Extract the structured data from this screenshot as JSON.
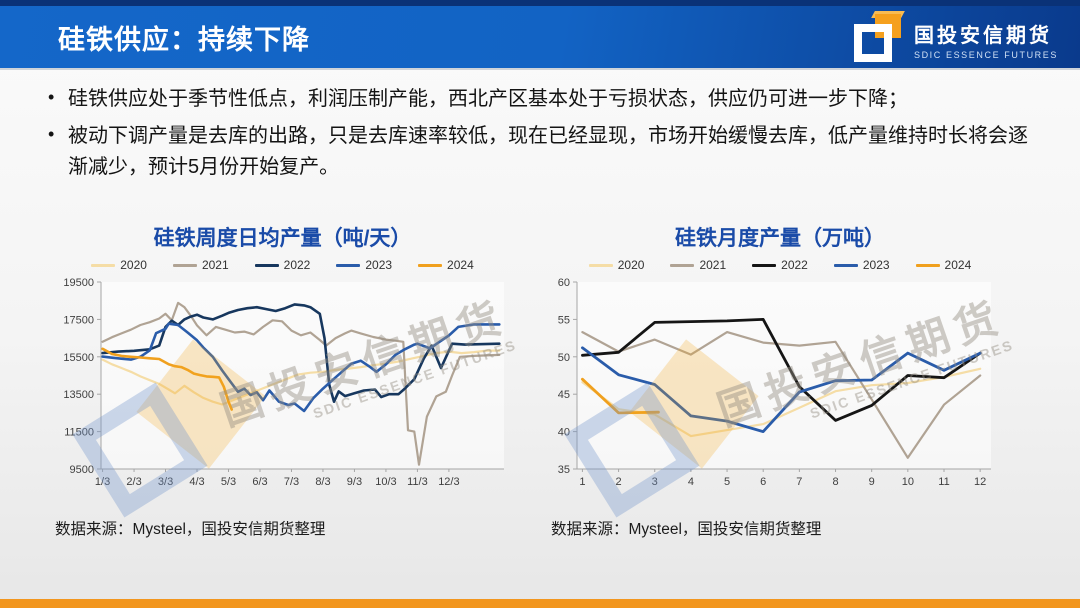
{
  "header": {
    "title": "硅铁供应：持续下降",
    "logo_cn": "国投安信期货",
    "logo_en": "SDIC ESSENCE FUTURES"
  },
  "bullets": [
    "硅铁供应处于季节性低点，利润压制产能，西北产区基本处于亏损状态，供应仍可进一步下降；",
    "被动下调产量是去库的出路，只是去库速率较低，现在已经显现，市场开始缓慢去库，低产量维持时长将会逐渐减少，预计5月份开始复产。"
  ],
  "watermark": {
    "cn": "国投安信期货",
    "en": "SDIC ESSENCE FUTURES"
  },
  "sources": [
    "数据来源：Mysteel，国投安信期货整理",
    "数据来源：Mysteel，国投安信期货整理"
  ],
  "chart_data": [
    {
      "type": "line",
      "title": "硅铁周度日均产量（吨/天）",
      "xlabel": "",
      "ylabel": "",
      "xlim": [
        0.95,
        13.75
      ],
      "ylim": [
        9500,
        19500
      ],
      "y_ticks": [
        9500,
        11500,
        13500,
        15500,
        17500,
        19500
      ],
      "x_ticks": [
        {
          "v": 1,
          "label": "1/3"
        },
        {
          "v": 2,
          "label": "2/3"
        },
        {
          "v": 3,
          "label": "3/3"
        },
        {
          "v": 4,
          "label": "4/3"
        },
        {
          "v": 5,
          "label": "5/3"
        },
        {
          "v": 6,
          "label": "6/3"
        },
        {
          "v": 7,
          "label": "7/3"
        },
        {
          "v": 8,
          "label": "8/3"
        },
        {
          "v": 9,
          "label": "9/3"
        },
        {
          "v": 10,
          "label": "10/3"
        },
        {
          "v": 11,
          "label": "11/3"
        },
        {
          "v": 12,
          "label": "12/3"
        }
      ],
      "grid": false,
      "legend_position": "top",
      "series": [
        {
          "name": "2020",
          "color": "#f5dda6",
          "w": 2.2,
          "x": [
            1,
            1.3,
            1.6,
            1.9,
            2.2,
            2.5,
            2.8,
            3.1,
            3.3,
            3.6,
            3.9,
            4.2,
            4.5,
            4.8,
            5.1,
            5.4,
            5.7,
            6.0,
            6.3,
            6.6,
            6.9,
            7.2,
            7.6,
            8.0,
            8.4,
            8.8,
            9.2,
            9.6,
            10.0,
            10.4,
            10.8,
            11.2,
            11.6,
            12.0,
            12.4,
            12.8,
            13.2,
            13.6
          ],
          "y": [
            15350,
            15100,
            14900,
            14700,
            14450,
            14250,
            14050,
            13750,
            13550,
            13950,
            13600,
            13300,
            13100,
            12950,
            13150,
            13350,
            13550,
            13750,
            13950,
            14150,
            14350,
            14550,
            14650,
            14700,
            14800,
            14870,
            14950,
            15050,
            15130,
            15250,
            15400,
            15550,
            15700,
            15780,
            15700,
            15750,
            15830,
            15830
          ]
        },
        {
          "name": "2021",
          "color": "#b0a394",
          "w": 2.2,
          "x": [
            1,
            1.3,
            1.6,
            1.9,
            2.2,
            2.5,
            2.8,
            3.0,
            3.2,
            3.4,
            3.6,
            3.8,
            4.0,
            4.3,
            4.6,
            4.9,
            5.2,
            5.5,
            5.8,
            6.1,
            6.4,
            6.7,
            7.0,
            7.3,
            7.6,
            7.9,
            8.1,
            8.4,
            8.7,
            8.9,
            9.2,
            9.6,
            10.0,
            10.3,
            10.55,
            10.7,
            10.9,
            11.05,
            11.3,
            11.6,
            11.9,
            12.1,
            12.35,
            12.8,
            13.6
          ],
          "y": [
            16300,
            16550,
            16750,
            16950,
            17200,
            17350,
            17550,
            17800,
            17450,
            18380,
            18150,
            17700,
            17180,
            16650,
            17100,
            16950,
            16800,
            16850,
            16700,
            17100,
            17450,
            17400,
            16900,
            16650,
            16800,
            16400,
            16100,
            16500,
            16750,
            16900,
            16750,
            16560,
            16420,
            16360,
            16300,
            11570,
            11500,
            9730,
            12300,
            13380,
            13630,
            14500,
            15500,
            15550,
            15600
          ]
        },
        {
          "name": "2022",
          "color": "#17375e",
          "w": 2.6,
          "x": [
            1,
            1.5,
            2.0,
            2.5,
            2.8,
            3.0,
            3.2,
            3.4,
            3.6,
            3.8,
            4.0,
            4.2,
            4.5,
            4.8,
            5.0,
            5.3,
            5.6,
            5.9,
            6.2,
            6.5,
            6.8,
            7.1,
            7.4,
            7.6,
            7.9,
            8.05,
            8.2,
            8.35,
            8.5,
            8.7,
            9.0,
            9.3,
            9.65,
            9.85,
            10.1,
            10.4,
            10.6,
            10.9,
            11.2,
            11.45,
            11.75,
            12.1,
            12.5,
            13.6
          ],
          "y": [
            15700,
            15780,
            15820,
            15900,
            16100,
            17100,
            17430,
            17200,
            17500,
            17650,
            17750,
            17600,
            17500,
            17700,
            17850,
            18000,
            18100,
            18150,
            18050,
            17950,
            18100,
            18300,
            18250,
            18150,
            17800,
            16500,
            14000,
            13100,
            13650,
            13400,
            13550,
            13700,
            13750,
            13350,
            13500,
            13500,
            13800,
            14300,
            15400,
            16100,
            14900,
            16200,
            16150,
            16200
          ]
        },
        {
          "name": "2023",
          "color": "#2a5caa",
          "w": 2.6,
          "x": [
            1,
            1.3,
            1.6,
            1.9,
            2.2,
            2.5,
            2.7,
            3.0,
            3.1,
            3.4,
            3.7,
            4.0,
            4.2,
            4.5,
            4.8,
            5.1,
            5.3,
            5.5,
            5.7,
            5.9,
            6.1,
            6.3,
            6.6,
            6.9,
            7.1,
            7.4,
            7.7,
            8.0,
            8.3,
            8.6,
            8.9,
            9.2,
            9.5,
            9.7,
            10.0,
            10.3,
            10.6,
            10.9,
            11.0,
            11.4,
            11.7,
            12.0,
            12.3,
            12.8,
            13.6
          ],
          "y": [
            15510,
            15450,
            15400,
            15350,
            15500,
            15850,
            16760,
            17000,
            17270,
            17200,
            16800,
            16380,
            16000,
            15500,
            14770,
            14080,
            13630,
            13800,
            13450,
            13600,
            13180,
            13700,
            13100,
            12920,
            13000,
            12600,
            13300,
            13800,
            14250,
            14700,
            15130,
            15290,
            14950,
            14700,
            15100,
            15600,
            15900,
            16150,
            16200,
            15950,
            16300,
            16640,
            17100,
            17230,
            17230
          ]
        },
        {
          "name": "2024",
          "color": "#f0a01e",
          "w": 2.6,
          "x": [
            1,
            1.3,
            1.6,
            1.9,
            2.2,
            2.5,
            2.8,
            3.1,
            3.3,
            3.5,
            3.7,
            3.9,
            4.1,
            4.3,
            4.5,
            4.7,
            4.85,
            5.0,
            5.1
          ],
          "y": [
            15930,
            15650,
            15550,
            15500,
            15460,
            15420,
            15380,
            15100,
            15000,
            14950,
            14800,
            14600,
            14520,
            14450,
            14430,
            14400,
            13900,
            13100,
            12680
          ]
        }
      ]
    },
    {
      "type": "line",
      "title": "硅铁月度产量（万吨）",
      "xlabel": "",
      "ylabel": "",
      "xlim": [
        0.85,
        12.3
      ],
      "ylim": [
        35,
        60
      ],
      "y_ticks": [
        35,
        40,
        45,
        50,
        55,
        60
      ],
      "x_ticks": [
        {
          "v": 1,
          "label": "1"
        },
        {
          "v": 2,
          "label": "2"
        },
        {
          "v": 3,
          "label": "3"
        },
        {
          "v": 4,
          "label": "4"
        },
        {
          "v": 5,
          "label": "5"
        },
        {
          "v": 6,
          "label": "6"
        },
        {
          "v": 7,
          "label": "7"
        },
        {
          "v": 8,
          "label": "8"
        },
        {
          "v": 9,
          "label": "9"
        },
        {
          "v": 10,
          "label": "10"
        },
        {
          "v": 11,
          "label": "11"
        },
        {
          "v": 12,
          "label": "12"
        }
      ],
      "grid": false,
      "legend_position": "top",
      "series": [
        {
          "name": "2020",
          "color": "#f5dda6",
          "w": 2.2,
          "x": [
            1,
            2,
            3,
            4,
            5,
            6,
            7,
            8,
            9,
            10,
            11,
            12
          ],
          "y": [
            46.6,
            43.0,
            42.3,
            39.4,
            40.2,
            41.0,
            43.2,
            45.4,
            46.2,
            46.5,
            47.3,
            48.4
          ]
        },
        {
          "name": "2021",
          "color": "#b0a394",
          "w": 2.2,
          "x": [
            1,
            2,
            3,
            4,
            5,
            6,
            7,
            8,
            9,
            10,
            11,
            12
          ],
          "y": [
            53.3,
            50.7,
            52.3,
            50.3,
            53.3,
            51.9,
            51.5,
            52.0,
            44.3,
            36.5,
            43.6,
            47.5
          ]
        },
        {
          "name": "2022",
          "color": "#151515",
          "w": 2.8,
          "x": [
            1,
            2,
            3,
            4,
            5,
            6,
            7,
            8,
            9,
            10,
            11,
            12
          ],
          "y": [
            50.2,
            50.6,
            54.6,
            54.7,
            54.8,
            55.0,
            46.0,
            41.5,
            43.5,
            47.5,
            47.2,
            50.5
          ]
        },
        {
          "name": "2023",
          "color": "#2a5caa",
          "w": 2.8,
          "x": [
            1,
            2,
            3,
            4,
            5,
            6,
            7,
            8,
            9,
            10,
            11,
            12
          ],
          "y": [
            51.2,
            47.6,
            46.3,
            42.1,
            41.4,
            40.0,
            45.3,
            46.8,
            46.9,
            50.5,
            48.2,
            50.5
          ]
        },
        {
          "name": "2024",
          "color": "#f0a01e",
          "w": 2.8,
          "x": [
            1,
            2,
            3.1
          ],
          "y": [
            47.0,
            42.5,
            42.6
          ]
        }
      ]
    }
  ]
}
